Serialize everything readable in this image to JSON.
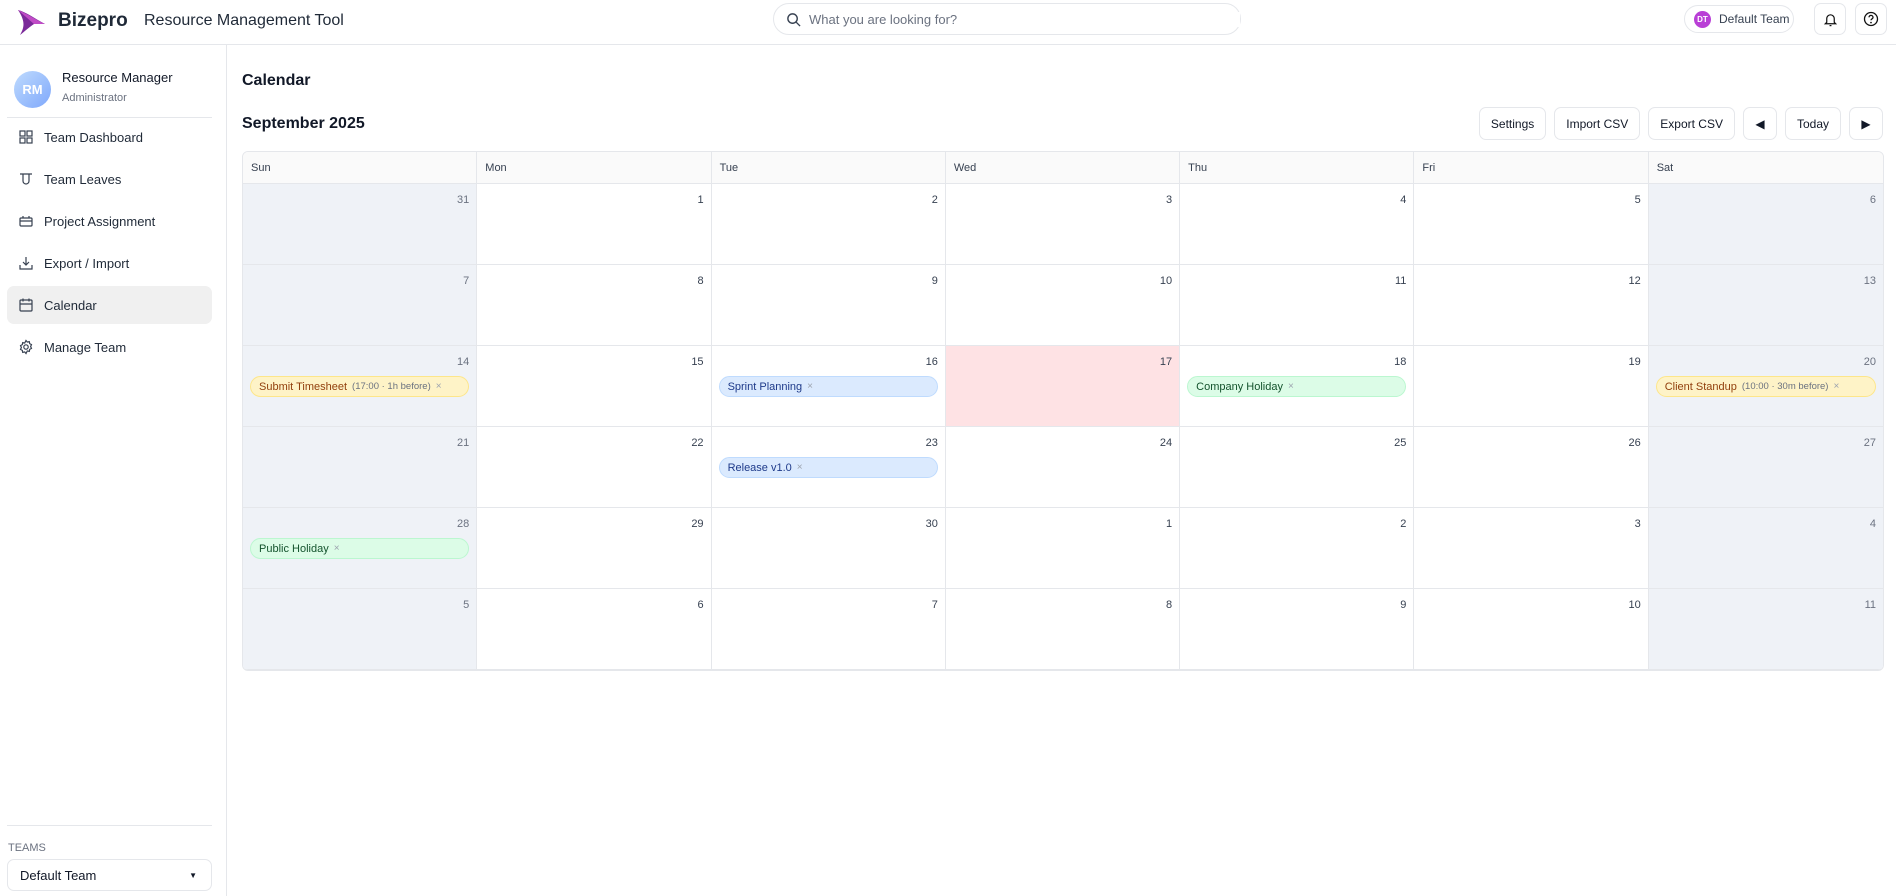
{
  "header": {
    "brand": "Bizepro",
    "app_title": "Resource Management Tool",
    "search_placeholder": "What you are looking for?",
    "team_initials": "DT",
    "team_name": "Default Team"
  },
  "user": {
    "initials": "RM",
    "name": "Resource Manager",
    "role": "Administrator"
  },
  "sidebar": {
    "items": [
      {
        "label": "Team Dashboard",
        "icon": "grid-icon"
      },
      {
        "label": "Team Leaves",
        "icon": "leaves-icon"
      },
      {
        "label": "Project Assignment",
        "icon": "briefcase-icon"
      },
      {
        "label": "Export / Import",
        "icon": "download-icon"
      },
      {
        "label": "Calendar",
        "icon": "calendar-icon",
        "active": true
      },
      {
        "label": "Manage Team",
        "icon": "gear-icon"
      }
    ],
    "teams_label": "TEAMS",
    "team_selected": "Default Team"
  },
  "page": {
    "title": "Calendar",
    "month": "September 2025"
  },
  "toolbar": {
    "settings": "Settings",
    "import": "Import CSV",
    "export": "Export CSV",
    "prev": "◀",
    "today": "Today",
    "next": "▶"
  },
  "calendar": {
    "weekdays": [
      "Sun",
      "Mon",
      "Tue",
      "Wed",
      "Thu",
      "Fri",
      "Sat"
    ],
    "today": 17,
    "weeks": [
      [
        31,
        1,
        2,
        3,
        4,
        5,
        6
      ],
      [
        7,
        8,
        9,
        10,
        11,
        12,
        13
      ],
      [
        14,
        15,
        16,
        17,
        18,
        19,
        20
      ],
      [
        21,
        22,
        23,
        24,
        25,
        26,
        27
      ],
      [
        28,
        29,
        30,
        1,
        2,
        3,
        4
      ],
      [
        5,
        6,
        7,
        8,
        9,
        10,
        11
      ]
    ],
    "events": [
      {
        "week": 2,
        "day": 0,
        "title": "Submit Timesheet",
        "meta": "(17:00 · 1h before)",
        "type": "reminder"
      },
      {
        "week": 2,
        "day": 2,
        "title": "Sprint Planning",
        "meta": "",
        "type": "project"
      },
      {
        "week": 2,
        "day": 4,
        "title": "Company Holiday",
        "meta": "",
        "type": "holiday"
      },
      {
        "week": 2,
        "day": 6,
        "title": "Client Standup",
        "meta": "(10:00 · 30m before)",
        "type": "reminder"
      },
      {
        "week": 3,
        "day": 2,
        "title": "Release v1.0",
        "meta": "",
        "type": "project"
      },
      {
        "week": 4,
        "day": 0,
        "title": "Public Holiday",
        "meta": "",
        "type": "holiday"
      }
    ],
    "remove_symbol": "×"
  },
  "colors": {
    "reminder": {
      "bg": "#fef3c7",
      "border": "#fde68a",
      "text": "#92400e"
    },
    "project": {
      "bg": "#dbeafe",
      "border": "#bfdbfe",
      "text": "#1e3a8a"
    },
    "holiday": {
      "bg": "#dcfce7",
      "border": "#bbf7d0",
      "text": "#14532d"
    },
    "today": "#fee2e4",
    "weekend": "#eff2f7",
    "accent": "#b93fd6"
  }
}
